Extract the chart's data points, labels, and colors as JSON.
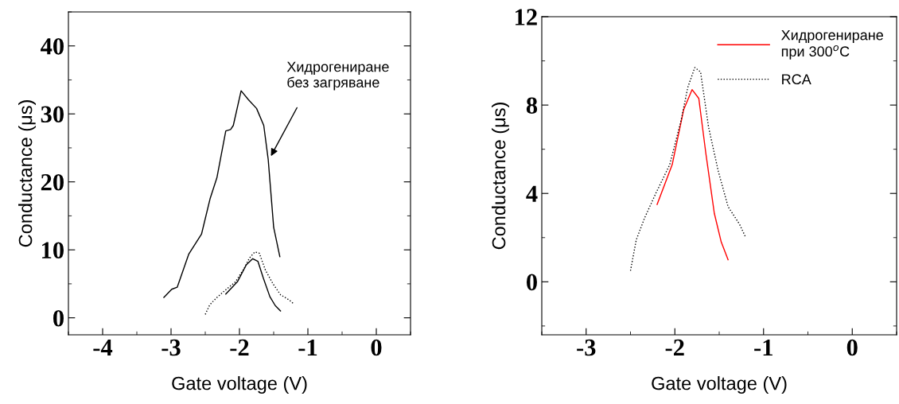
{
  "chart_data": [
    {
      "type": "line",
      "xlabel": "Gate voltage (V)",
      "ylabel": "Conductance (μs)",
      "xlim": [
        -4.5,
        0.5
      ],
      "ylim": [
        -2.5,
        45
      ],
      "xticks": [
        -4,
        -3,
        -2,
        -1,
        0
      ],
      "yticks": [
        0,
        10,
        20,
        30,
        40
      ],
      "grid": false,
      "legend": false,
      "annotations": [
        {
          "text": "Хидрогениране\nбез загряване",
          "x": -1.54,
          "y": 23.8
        }
      ],
      "series": [
        {
          "color": "#000000",
          "line_style": "solid",
          "x": [
            -3.105,
            -2.99,
            -2.91,
            -2.74,
            -2.555,
            -2.43,
            -2.33,
            -2.2,
            -2.13,
            -2.09,
            -1.976,
            -1.87,
            -1.75,
            -1.645,
            -1.58,
            -1.5,
            -1.41
          ],
          "values": [
            3.0,
            4.2,
            4.5,
            9.4,
            12.3,
            17.5,
            20.6,
            27.5,
            27.7,
            28.3,
            33.4,
            32.1,
            30.8,
            28.3,
            23.3,
            13.3,
            9.0
          ]
        },
        {
          "color": "#000000",
          "line_style": "solid",
          "x": [
            -2.2,
            -2.03,
            -1.9,
            -1.806,
            -1.73,
            -1.65,
            -1.555,
            -1.477,
            -1.4
          ],
          "values": [
            3.5,
            5.3,
            7.8,
            8.7,
            8.3,
            5.8,
            3.1,
            1.8,
            1.0
          ]
        },
        {
          "color": "#000000",
          "line_style": "dotted",
          "x": [
            -2.5,
            -2.435,
            -2.34,
            -2.215,
            -2.058,
            -1.93,
            -1.854,
            -1.775,
            -1.71,
            -1.62,
            -1.51,
            -1.4,
            -1.27,
            -1.2
          ],
          "values": [
            0.5,
            1.9,
            2.9,
            4.0,
            5.3,
            7.3,
            8.8,
            9.7,
            9.5,
            7.0,
            5.0,
            3.4,
            2.6,
            2.0
          ]
        }
      ]
    },
    {
      "type": "line",
      "xlabel": "Gate voltage (V)",
      "ylabel": "Conductance (μs)",
      "xlim": [
        -3.5,
        0.5
      ],
      "ylim": [
        -2.4,
        12
      ],
      "xticks": [
        -3,
        -2,
        -1,
        0
      ],
      "yticks": [
        0,
        4,
        8,
        12
      ],
      "grid": false,
      "legend": "top right",
      "series": [
        {
          "name": "Хидрогениране\nпри 300$^{o}$C",
          "color": "#ff0000",
          "line_style": "solid",
          "x": [
            -2.2,
            -2.03,
            -1.9,
            -1.806,
            -1.73,
            -1.65,
            -1.555,
            -1.477,
            -1.4
          ],
          "values": [
            3.5,
            5.3,
            7.8,
            8.7,
            8.3,
            5.8,
            3.1,
            1.8,
            1.0
          ]
        },
        {
          "name": "RCA",
          "color": "#000000",
          "line_style": "dotted",
          "x": [
            -2.5,
            -2.435,
            -2.34,
            -2.215,
            -2.058,
            -1.93,
            -1.854,
            -1.775,
            -1.71,
            -1.62,
            -1.51,
            -1.4,
            -1.27,
            -1.2
          ],
          "values": [
            0.5,
            1.9,
            2.9,
            4.0,
            5.3,
            7.3,
            8.8,
            9.7,
            9.5,
            7.0,
            5.0,
            3.4,
            2.6,
            2.0
          ]
        }
      ]
    }
  ]
}
